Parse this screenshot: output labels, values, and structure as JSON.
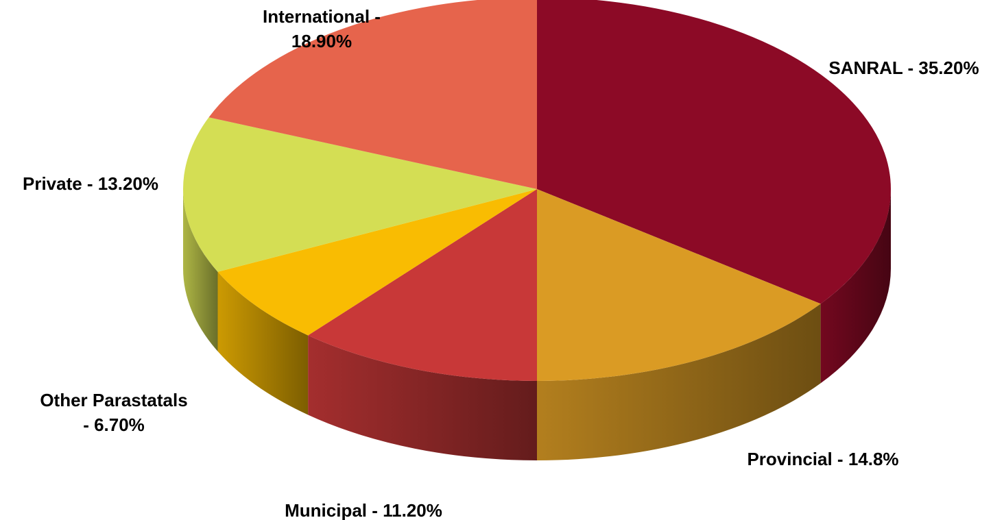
{
  "chart_data": {
    "type": "pie",
    "style": "3d",
    "slices": [
      {
        "name": "SANRAL",
        "value": 35.2,
        "label_lines": [
          "SANRAL - 35.20%"
        ],
        "color": "#8C0A26"
      },
      {
        "name": "Provincial",
        "value": 14.8,
        "label_lines": [
          "Provincial - 14.8%"
        ],
        "color": "#DA9B24"
      },
      {
        "name": "Municipal",
        "value": 11.2,
        "label_lines": [
          "Municipal - 11.20%"
        ],
        "color": "#C83838"
      },
      {
        "name": "Other Parastatals",
        "value": 6.7,
        "label_lines": [
          "Other Parastatals",
          "- 6.70%"
        ],
        "color": "#F9BC02"
      },
      {
        "name": "Private",
        "value": 13.2,
        "label_lines": [
          "Private - 13.20%"
        ],
        "color": "#D4DE54"
      },
      {
        "name": "International",
        "value": 18.9,
        "label_lines": [
          "International -",
          "18.90%"
        ],
        "color": "#E6644C"
      }
    ],
    "title": "",
    "legend": "none",
    "start_angle": "top-center",
    "direction": "clockwise"
  }
}
